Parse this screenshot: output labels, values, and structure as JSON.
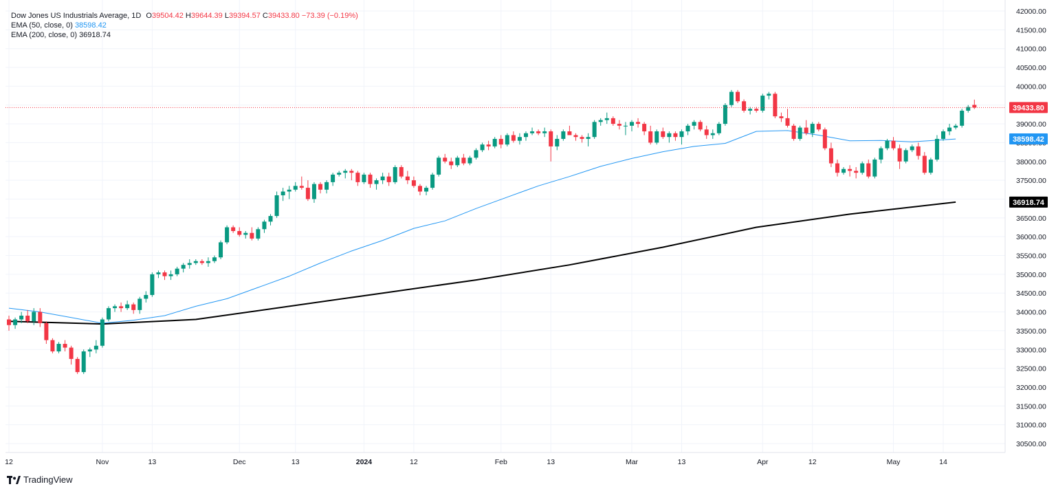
{
  "header": {
    "symbol": "Dow Jones US Industrials Average, 1D",
    "ohlc": {
      "o_label": "O",
      "o": "39504.42",
      "h_label": "H",
      "h": "39644.39",
      "l_label": "L",
      "l": "39394.57",
      "c_label": "C",
      "c": "39433.80",
      "change": "−73.39 (−0.19%)"
    },
    "ema50_label": "EMA (50, close, 0)",
    "ema50_value": "38598.42",
    "ema200_label": "EMA (200, close, 0)",
    "ema200_value": "36918.74"
  },
  "branding": {
    "name": "TradingView"
  },
  "colors": {
    "up": "#089981",
    "down": "#f23645",
    "ema50": "#2196f3",
    "ema200": "#000000",
    "grid": "#f0f3fa"
  },
  "chart_data": {
    "type": "candlestick",
    "y_axis": {
      "ticks": [
        "42000.00",
        "41500.00",
        "41000.00",
        "40500.00",
        "40000.00",
        "39500.00",
        "39000.00",
        "38500.00",
        "38000.00",
        "37500.00",
        "37000.00",
        "36500.00",
        "36000.00",
        "35500.00",
        "35000.00",
        "34500.00",
        "34000.00",
        "33500.00",
        "33000.00",
        "32500.00",
        "32000.00",
        "31500.00",
        "31000.00",
        "30500.00"
      ],
      "range": [
        30300,
        42050
      ]
    },
    "x_axis": {
      "ticks": [
        {
          "label": "12",
          "i": 0,
          "bold": false
        },
        {
          "label": "Nov",
          "i": 15,
          "bold": false
        },
        {
          "label": "13",
          "i": 23,
          "bold": false
        },
        {
          "label": "Dec",
          "i": 37,
          "bold": false
        },
        {
          "label": "13",
          "i": 46,
          "bold": false
        },
        {
          "label": "2024",
          "i": 57,
          "bold": true
        },
        {
          "label": "12",
          "i": 65,
          "bold": false
        },
        {
          "label": "Feb",
          "i": 79,
          "bold": false
        },
        {
          "label": "13",
          "i": 87,
          "bold": false
        },
        {
          "label": "Mar",
          "i": 100,
          "bold": false
        },
        {
          "label": "13",
          "i": 108,
          "bold": false
        },
        {
          "label": "Apr",
          "i": 121,
          "bold": false
        },
        {
          "label": "12",
          "i": 129,
          "bold": false
        },
        {
          "label": "May",
          "i": 142,
          "bold": false
        },
        {
          "label": "14",
          "i": 150,
          "bold": false
        }
      ]
    },
    "last_price": 39433.8,
    "ema50_last": 38598.42,
    "ema200_last": 36918.74,
    "candles": [
      [
        33800,
        33900,
        33500,
        33650
      ],
      [
        33650,
        33850,
        33550,
        33800
      ],
      [
        33800,
        34000,
        33700,
        33900
      ],
      [
        33900,
        34050,
        33700,
        33750
      ],
      [
        33750,
        34100,
        33650,
        34000
      ],
      [
        34000,
        34100,
        33600,
        33700
      ],
      [
        33700,
        33750,
        33150,
        33250
      ],
      [
        33250,
        33300,
        32900,
        32950
      ],
      [
        32950,
        33200,
        32900,
        33150
      ],
      [
        33150,
        33250,
        32950,
        33050
      ],
      [
        33050,
        33100,
        32600,
        32750
      ],
      [
        32750,
        32800,
        32350,
        32400
      ],
      [
        32400,
        33000,
        32350,
        32950
      ],
      [
        32950,
        33050,
        32800,
        33000
      ],
      [
        33000,
        33250,
        32900,
        33100
      ],
      [
        33100,
        33850,
        33050,
        33800
      ],
      [
        33800,
        34150,
        33750,
        34100
      ],
      [
        34100,
        34200,
        34000,
        34150
      ],
      [
        34150,
        34250,
        34000,
        34100
      ],
      [
        34100,
        34300,
        34050,
        34200
      ],
      [
        34200,
        34250,
        33950,
        34050
      ],
      [
        34050,
        34400,
        33950,
        34350
      ],
      [
        34350,
        34550,
        34250,
        34450
      ],
      [
        34450,
        35050,
        34400,
        35000
      ],
      [
        35000,
        35100,
        34900,
        35050
      ],
      [
        35050,
        35100,
        34850,
        34950
      ],
      [
        34950,
        35100,
        34850,
        35000
      ],
      [
        35000,
        35200,
        34950,
        35150
      ],
      [
        35150,
        35300,
        35050,
        35250
      ],
      [
        35250,
        35400,
        35150,
        35300
      ],
      [
        35300,
        35400,
        35250,
        35350
      ],
      [
        35350,
        35400,
        35250,
        35300
      ],
      [
        35300,
        35450,
        35200,
        35350
      ],
      [
        35350,
        35500,
        35300,
        35450
      ],
      [
        35450,
        35900,
        35400,
        35850
      ],
      [
        35850,
        36300,
        35800,
        36250
      ],
      [
        36250,
        36300,
        36100,
        36150
      ],
      [
        36150,
        36250,
        36000,
        36050
      ],
      [
        36050,
        36150,
        35950,
        36100
      ],
      [
        36100,
        36250,
        35900,
        35950
      ],
      [
        35950,
        36250,
        35900,
        36200
      ],
      [
        36200,
        36450,
        36100,
        36400
      ],
      [
        36400,
        36600,
        36300,
        36550
      ],
      [
        36550,
        37200,
        36500,
        37100
      ],
      [
        37100,
        37300,
        36950,
        37200
      ],
      [
        37200,
        37350,
        37000,
        37250
      ],
      [
        37250,
        37450,
        37200,
        37350
      ],
      [
        37350,
        37600,
        37250,
        37300
      ],
      [
        37300,
        37500,
        36950,
        37000
      ],
      [
        37000,
        37450,
        36900,
        37400
      ],
      [
        37400,
        37450,
        37150,
        37250
      ],
      [
        37250,
        37500,
        37150,
        37450
      ],
      [
        37450,
        37700,
        37350,
        37650
      ],
      [
        37650,
        37750,
        37600,
        37700
      ],
      [
        37700,
        37800,
        37550,
        37750
      ],
      [
        37750,
        37800,
        37500,
        37700
      ],
      [
        37700,
        37750,
        37350,
        37450
      ],
      [
        37450,
        37700,
        37400,
        37650
      ],
      [
        37650,
        37700,
        37300,
        37400
      ],
      [
        37400,
        37550,
        37250,
        37500
      ],
      [
        37500,
        37700,
        37400,
        37600
      ],
      [
        37600,
        37700,
        37350,
        37450
      ],
      [
        37450,
        37900,
        37400,
        37850
      ],
      [
        37850,
        37900,
        37550,
        37600
      ],
      [
        37600,
        37750,
        37400,
        37500
      ],
      [
        37500,
        37600,
        37300,
        37350
      ],
      [
        37350,
        37400,
        37100,
        37200
      ],
      [
        37200,
        37350,
        37100,
        37300
      ],
      [
        37300,
        37700,
        37250,
        37650
      ],
      [
        37650,
        38150,
        37600,
        38100
      ],
      [
        38100,
        38200,
        37950,
        38000
      ],
      [
        38000,
        38100,
        37800,
        37900
      ],
      [
        37900,
        38150,
        37850,
        38100
      ],
      [
        38100,
        38200,
        37900,
        37950
      ],
      [
        37950,
        38150,
        37900,
        38100
      ],
      [
        38100,
        38350,
        38050,
        38300
      ],
      [
        38300,
        38500,
        38250,
        38450
      ],
      [
        38450,
        38550,
        38300,
        38400
      ],
      [
        38400,
        38650,
        38350,
        38600
      ],
      [
        38600,
        38700,
        38350,
        38450
      ],
      [
        38450,
        38750,
        38400,
        38700
      ],
      [
        38700,
        38800,
        38500,
        38550
      ],
      [
        38550,
        38750,
        38450,
        38650
      ],
      [
        38650,
        38800,
        38550,
        38750
      ],
      [
        38750,
        38900,
        38700,
        38800
      ],
      [
        38800,
        38850,
        38700,
        38750
      ],
      [
        38750,
        38900,
        38650,
        38800
      ],
      [
        38800,
        38850,
        38000,
        38400
      ],
      [
        38400,
        38700,
        38300,
        38600
      ],
      [
        38600,
        38850,
        38550,
        38800
      ],
      [
        38800,
        38950,
        38700,
        38700
      ],
      [
        38700,
        38750,
        38550,
        38650
      ],
      [
        38650,
        38700,
        38500,
        38600
      ],
      [
        38600,
        38750,
        38400,
        38650
      ],
      [
        38650,
        39100,
        38600,
        39050
      ],
      [
        39050,
        39150,
        38950,
        39100
      ],
      [
        39100,
        39300,
        39000,
        39150
      ],
      [
        39150,
        39200,
        38950,
        39000
      ],
      [
        39000,
        39100,
        38850,
        38950
      ],
      [
        38950,
        39050,
        38700,
        38950
      ],
      [
        38950,
        39100,
        38800,
        39050
      ],
      [
        39050,
        39150,
        38900,
        39000
      ],
      [
        39000,
        39050,
        38700,
        38800
      ],
      [
        38800,
        38950,
        38450,
        38500
      ],
      [
        38500,
        38850,
        38450,
        38800
      ],
      [
        38800,
        38900,
        38600,
        38650
      ],
      [
        38650,
        38800,
        38500,
        38750
      ],
      [
        38750,
        38800,
        38550,
        38650
      ],
      [
        38650,
        38850,
        38450,
        38800
      ],
      [
        38800,
        39000,
        38700,
        38950
      ],
      [
        38950,
        39100,
        38850,
        39050
      ],
      [
        39050,
        39100,
        38800,
        38850
      ],
      [
        38850,
        38950,
        38600,
        38700
      ],
      [
        38700,
        38850,
        38600,
        38750
      ],
      [
        38750,
        39050,
        38700,
        39000
      ],
      [
        39000,
        39550,
        38950,
        39500
      ],
      [
        39500,
        39900,
        39450,
        39850
      ],
      [
        39850,
        39900,
        39550,
        39600
      ],
      [
        39600,
        39650,
        39300,
        39350
      ],
      [
        39350,
        39450,
        39250,
        39400
      ],
      [
        39400,
        39450,
        39300,
        39350
      ],
      [
        39350,
        39800,
        39300,
        39750
      ],
      [
        39750,
        39850,
        39650,
        39800
      ],
      [
        39800,
        39850,
        39150,
        39200
      ],
      [
        39200,
        39300,
        39050,
        39150
      ],
      [
        39150,
        39400,
        38900,
        38950
      ],
      [
        38950,
        39000,
        38550,
        38600
      ],
      [
        38600,
        38950,
        38550,
        38900
      ],
      [
        38900,
        39100,
        38700,
        38750
      ],
      [
        38750,
        39050,
        38650,
        39000
      ],
      [
        39000,
        39050,
        38800,
        38850
      ],
      [
        38850,
        38900,
        38300,
        38350
      ],
      [
        38350,
        38500,
        37850,
        37950
      ],
      [
        37950,
        38050,
        37600,
        37700
      ],
      [
        37700,
        37850,
        37650,
        37800
      ],
      [
        37800,
        37900,
        37600,
        37750
      ],
      [
        37750,
        37850,
        37550,
        37700
      ],
      [
        37700,
        38000,
        37650,
        37950
      ],
      [
        37950,
        38050,
        37550,
        37600
      ],
      [
        37600,
        38100,
        37550,
        38050
      ],
      [
        38050,
        38400,
        37950,
        38350
      ],
      [
        38350,
        38600,
        38300,
        38550
      ],
      [
        38550,
        38650,
        38300,
        38350
      ],
      [
        38350,
        38450,
        37800,
        38000
      ],
      [
        38000,
        38350,
        37950,
        38300
      ],
      [
        38300,
        38450,
        38250,
        38400
      ],
      [
        38400,
        38500,
        38050,
        38150
      ],
      [
        38150,
        38250,
        37650,
        37700
      ],
      [
        37700,
        38100,
        37650,
        38050
      ],
      [
        38050,
        38700,
        38000,
        38600
      ],
      [
        38600,
        38850,
        38550,
        38800
      ],
      [
        38800,
        39000,
        38700,
        38900
      ],
      [
        38900,
        39000,
        38850,
        38950
      ],
      [
        38950,
        39400,
        38900,
        39350
      ],
      [
        39350,
        39500,
        39300,
        39450
      ],
      [
        39504.42,
        39644.39,
        39394.57,
        39433.8
      ]
    ],
    "ema50": [
      [
        0,
        34100
      ],
      [
        5,
        34000
      ],
      [
        10,
        33850
      ],
      [
        15,
        33700
      ],
      [
        20,
        33780
      ],
      [
        25,
        33900
      ],
      [
        30,
        34150
      ],
      [
        35,
        34350
      ],
      [
        40,
        34650
      ],
      [
        45,
        34950
      ],
      [
        50,
        35300
      ],
      [
        55,
        35620
      ],
      [
        60,
        35900
      ],
      [
        65,
        36220
      ],
      [
        70,
        36420
      ],
      [
        75,
        36750
      ],
      [
        80,
        37050
      ],
      [
        85,
        37350
      ],
      [
        90,
        37600
      ],
      [
        95,
        37870
      ],
      [
        100,
        38080
      ],
      [
        105,
        38260
      ],
      [
        110,
        38400
      ],
      [
        115,
        38480
      ],
      [
        120,
        38800
      ],
      [
        125,
        38820
      ],
      [
        130,
        38700
      ],
      [
        135,
        38550
      ],
      [
        140,
        38560
      ],
      [
        145,
        38520
      ],
      [
        152,
        38598.42
      ]
    ],
    "ema200": [
      [
        0,
        33750
      ],
      [
        15,
        33680
      ],
      [
        30,
        33800
      ],
      [
        45,
        34150
      ],
      [
        60,
        34500
      ],
      [
        75,
        34850
      ],
      [
        90,
        35250
      ],
      [
        105,
        35720
      ],
      [
        120,
        36250
      ],
      [
        135,
        36600
      ],
      [
        152,
        36918.74
      ]
    ]
  }
}
